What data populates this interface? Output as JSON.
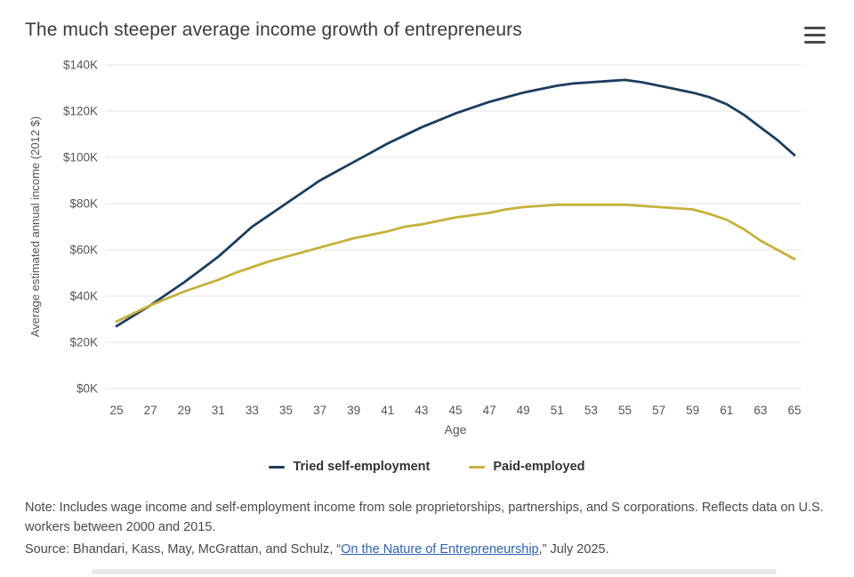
{
  "chart_data": {
    "type": "line",
    "title": "The much steeper average income growth of entrepreneurs",
    "xlabel": "Age",
    "ylabel": "Average estimated annual income (2012 $)",
    "units": "thousands of 2012 dollars",
    "xlim": [
      25,
      65
    ],
    "ylim_k": [
      0,
      140
    ],
    "grid": "horizontal-only",
    "legend_position": "bottom-center",
    "x": [
      25,
      26,
      27,
      28,
      29,
      30,
      31,
      32,
      33,
      34,
      35,
      36,
      37,
      38,
      39,
      40,
      41,
      42,
      43,
      44,
      45,
      46,
      47,
      48,
      49,
      50,
      51,
      52,
      53,
      54,
      55,
      56,
      57,
      58,
      59,
      60,
      61,
      62,
      63,
      64,
      65
    ],
    "x_tick_values": [
      25,
      27,
      29,
      31,
      33,
      35,
      37,
      39,
      41,
      43,
      45,
      47,
      49,
      51,
      53,
      55,
      57,
      59,
      61,
      63,
      65
    ],
    "y_ticks_k": [
      0,
      20,
      40,
      60,
      80,
      100,
      120,
      140
    ],
    "y_tick_labels": [
      "$0K",
      "$20K",
      "$40K",
      "$60K",
      "$80K",
      "$100K",
      "$120K",
      "$140K"
    ],
    "series": [
      {
        "name": "Tried self-employment",
        "color": "#1d3d5e",
        "values_k": [
          27,
          31.5,
          36,
          41,
          46,
          51.5,
          57,
          63.5,
          70,
          75,
          80,
          85,
          90,
          94,
          98,
          102,
          106,
          109.5,
          113,
          116,
          119,
          121.5,
          124,
          126,
          128,
          129.5,
          131,
          132,
          132.5,
          133,
          133.5,
          132.5,
          131,
          129.5,
          128,
          126,
          123,
          118.5,
          113,
          107.5,
          101
        ]
      },
      {
        "name": "Paid-employed",
        "color": "#c5b23b",
        "values_k": [
          29,
          32.5,
          36,
          39,
          42,
          44.5,
          47,
          50,
          52.5,
          55,
          57,
          59,
          61,
          63,
          65,
          66.5,
          68,
          70,
          71,
          72.5,
          74,
          75,
          76,
          77.5,
          78.5,
          79,
          79.5,
          79.5,
          79.5,
          79.5,
          79.5,
          79,
          78.5,
          78,
          77.5,
          75.5,
          73,
          69,
          64,
          60,
          56
        ]
      }
    ]
  },
  "footnote": {
    "note": "Note: Includes wage income and self-employment income from sole proprietorships, partnerships, and S corporations. Reflects data on U.S. workers between 2000 and 2015.",
    "source_prefix": "Source: Bhandari, Kass, May, McGrattan, and Schulz, “",
    "source_link_text": "On the Nature of Entrepreneurship",
    "source_suffix": ",” July 2025.",
    "link_color": "#2e62b8"
  }
}
